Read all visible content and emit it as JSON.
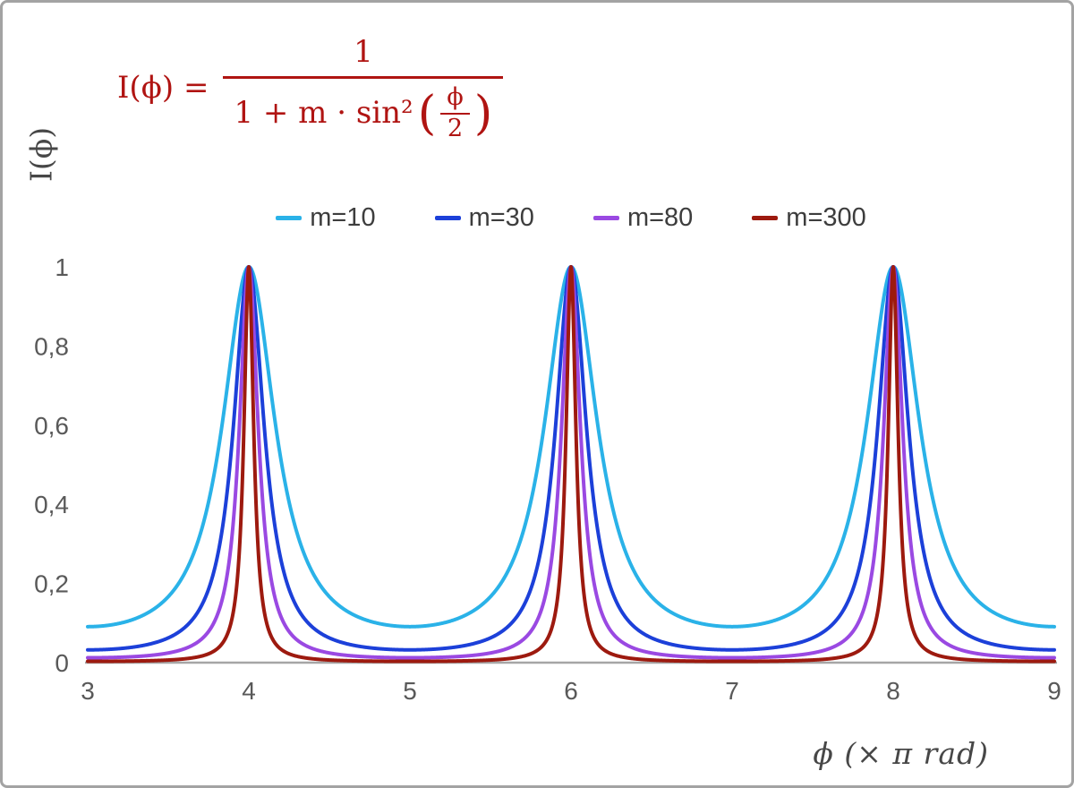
{
  "frame": {
    "border_color": "#a3a3a3",
    "background": "#ffffff"
  },
  "formula": {
    "lhs": "I(ϕ) =",
    "numerator": "1",
    "denominator_prefix": "1 + m · sin²",
    "inner_numerator": "ϕ",
    "inner_denominator": "2",
    "color": "#b01412"
  },
  "chart_data": {
    "type": "line",
    "title": "",
    "function": "I(x) = 1 / (1 + m · sin²(π·x / 2)), x in units of π rad",
    "xlabel": "ϕ  (× π rad)",
    "ylabel": "I(ϕ)",
    "xlim": [
      3,
      9
    ],
    "ylim": [
      0,
      1
    ],
    "grid": false,
    "legend_position": "top-center",
    "axis_color": "#a6a6a6",
    "tick_color": "#595959",
    "x_ticks": [
      {
        "v": 3,
        "label": "3"
      },
      {
        "v": 4,
        "label": "4"
      },
      {
        "v": 5,
        "label": "5"
      },
      {
        "v": 6,
        "label": "6"
      },
      {
        "v": 7,
        "label": "7"
      },
      {
        "v": 8,
        "label": "8"
      },
      {
        "v": 9,
        "label": "9"
      }
    ],
    "y_ticks": [
      {
        "v": 0,
        "label": "0"
      },
      {
        "v": 0.2,
        "label": "0,2"
      },
      {
        "v": 0.4,
        "label": "0,4"
      },
      {
        "v": 0.6,
        "label": "0,6"
      },
      {
        "v": 0.8,
        "label": "0,8"
      },
      {
        "v": 1,
        "label": "1"
      }
    ],
    "peaks_at_x": [
      4,
      6,
      8
    ],
    "series": [
      {
        "name": "m=10",
        "m": 10,
        "color": "#2ab2e8",
        "min_value": 0.0909
      },
      {
        "name": "m=30",
        "m": 30,
        "color": "#1c40d9",
        "min_value": 0.0323
      },
      {
        "name": "m=80",
        "m": 80,
        "color": "#9a49e2",
        "min_value": 0.0123
      },
      {
        "name": "m=300",
        "m": 300,
        "color": "#9d1a0f",
        "min_value": 0.0033
      }
    ]
  }
}
